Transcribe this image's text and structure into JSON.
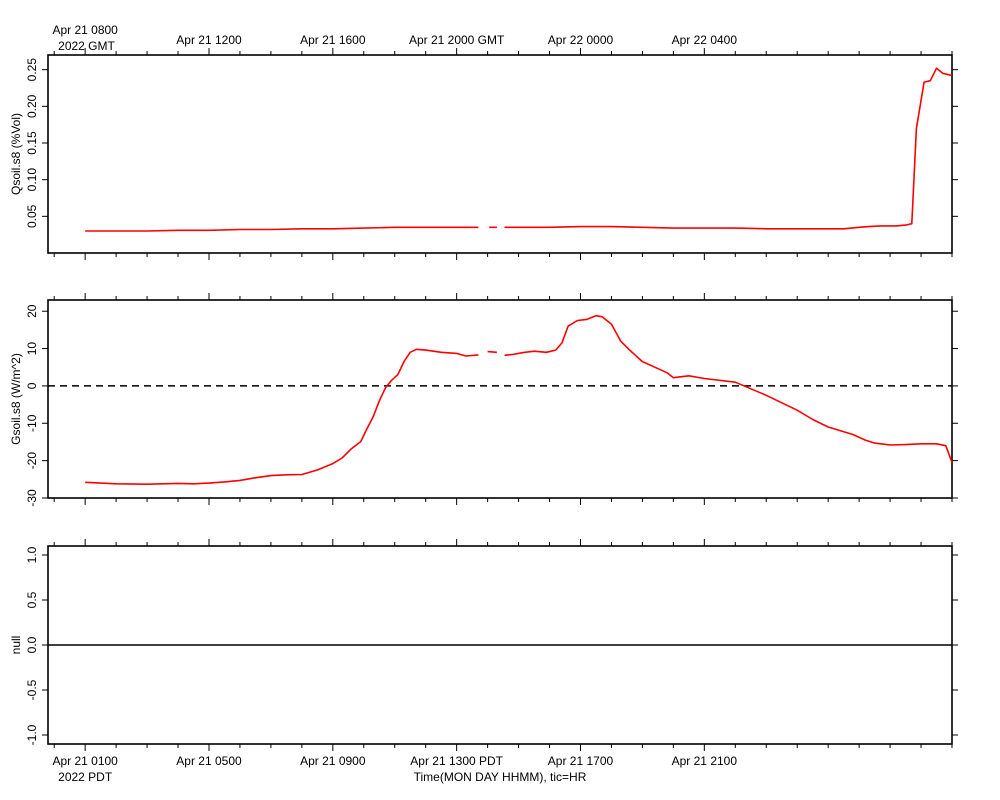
{
  "chart_data": [
    {
      "type": "line",
      "ylabel": "Qsoil.s8 (%Vol)",
      "ylim": [
        0.0,
        0.27
      ],
      "yticks": [
        0.05,
        0.1,
        0.15,
        0.2,
        0.25
      ],
      "ytick_labels": [
        "0.05",
        "0.10",
        "0.15",
        "0.20",
        "0.25"
      ],
      "zero_line": false,
      "series": [
        {
          "color": "#ff0000",
          "segments": [
            {
              "x": [
                0,
                1,
                2,
                3,
                4,
                5,
                6,
                7,
                8,
                9,
                10,
                11,
                12,
                12.7
              ],
              "y": [
                0.03,
                0.03,
                0.03,
                0.031,
                0.031,
                0.032,
                0.032,
                0.033,
                0.033,
                0.034,
                0.035,
                0.035,
                0.035,
                0.035
              ]
            },
            {
              "x": [
                13.05,
                13.3
              ],
              "y": [
                0.035,
                0.035
              ]
            },
            {
              "x": [
                13.55,
                14,
                15,
                16,
                17,
                18,
                19,
                20,
                21,
                22,
                23,
                23.5,
                24.5,
                25,
                25.3,
                25.7,
                26,
                26.2,
                26.5,
                26.7,
                26.85,
                27.1,
                27.3,
                27.5,
                27.7,
                28.0
              ],
              "y": [
                0.035,
                0.035,
                0.035,
                0.036,
                0.036,
                0.035,
                0.034,
                0.034,
                0.034,
                0.033,
                0.033,
                0.033,
                0.033,
                0.035,
                0.036,
                0.037,
                0.037,
                0.037,
                0.038,
                0.04,
                0.17,
                0.233,
                0.235,
                0.252,
                0.245,
                0.242
              ]
            }
          ]
        }
      ]
    },
    {
      "type": "line",
      "ylabel": "Gsoil.s8 (W/m^2)",
      "ylim": [
        -30,
        23
      ],
      "yticks": [
        -30,
        -20,
        -10,
        0,
        10,
        20
      ],
      "ytick_labels": [
        "-30",
        "-20",
        "-10",
        "0",
        "10",
        "20"
      ],
      "zero_line": true,
      "series": [
        {
          "color": "#ff0000",
          "segments": [
            {
              "x": [
                0,
                1,
                2,
                3,
                3.5,
                4,
                4.5,
                5,
                5.5,
                6,
                6.5,
                7,
                7.5,
                8,
                8.3,
                8.6,
                8.9,
                9.1,
                9.3,
                9.5,
                9.7,
                9.9,
                10.1,
                10.3,
                10.5,
                10.7,
                11,
                11.5,
                12,
                12.3,
                12.7
              ],
              "y": [
                -25.8,
                -26.2,
                -26.3,
                -26.1,
                -26.2,
                -26.0,
                -25.7,
                -25.3,
                -24.6,
                -24.0,
                -23.8,
                -23.7,
                -22.5,
                -20.8,
                -19.3,
                -16.8,
                -14.9,
                -11.5,
                -8.3,
                -4.0,
                -0.5,
                1.5,
                3.0,
                6.5,
                9.0,
                9.8,
                9.6,
                9.0,
                8.7,
                8.0,
                8.3
              ]
            },
            {
              "x": [
                13.0,
                13.3
              ],
              "y": [
                9.2,
                9.0
              ]
            },
            {
              "x": [
                13.55,
                13.8,
                14.2,
                14.5,
                14.9,
                15.2,
                15.4,
                15.6,
                15.9,
                16.2,
                16.5,
                16.7,
                17.0,
                17.3,
                17.6,
                18.0,
                18.4,
                18.8,
                19.0,
                19.5,
                20.0,
                21.0,
                22.0,
                23.0,
                23.5,
                24.0,
                24.8,
                25.2,
                25.5,
                26.0,
                26.5,
                27.0,
                27.5,
                27.8,
                28.0
              ],
              "y": [
                8.2,
                8.4,
                9.0,
                9.3,
                9.0,
                9.6,
                11.5,
                16.0,
                17.5,
                17.8,
                18.8,
                18.5,
                16.5,
                12.0,
                9.5,
                6.5,
                5.0,
                3.5,
                2.2,
                2.7,
                2.0,
                1.0,
                -2.5,
                -6.5,
                -9.0,
                -11.0,
                -13.0,
                -14.5,
                -15.3,
                -15.8,
                -15.7,
                -15.5,
                -15.5,
                -16.0,
                -20.5
              ]
            }
          ]
        }
      ]
    },
    {
      "type": "line",
      "ylabel": "null",
      "ylim": [
        -1.1,
        1.1
      ],
      "yticks": [
        -1.0,
        -0.5,
        0.0,
        0.5,
        1.0
      ],
      "ytick_labels": [
        "-1.0",
        "-0.5",
        "0.0",
        "0.5",
        "1.0"
      ],
      "zero_line": false,
      "series": [
        {
          "color": "#000000",
          "segments": [
            {
              "x": [
                -1.2,
                28.0
              ],
              "y": [
                0.0,
                0.0
              ]
            }
          ]
        }
      ]
    }
  ],
  "time_axis": {
    "xlim": [
      -1.2,
      28.0
    ],
    "top_ticks": [
      {
        "x": 0,
        "line1": "Apr 21 0800",
        "line2": "2022 GMT"
      },
      {
        "x": 4,
        "line1": "Apr 21 1200",
        "line2": ""
      },
      {
        "x": 8,
        "line1": "Apr 21 1600",
        "line2": ""
      },
      {
        "x": 12,
        "line1": "Apr 21 2000 GMT",
        "line2": ""
      },
      {
        "x": 16,
        "line1": "Apr 22 0000",
        "line2": ""
      },
      {
        "x": 20,
        "line1": "Apr 22 0400",
        "line2": ""
      }
    ],
    "bottom_ticks": [
      {
        "x": 0,
        "line1": "Apr 21 0100",
        "line2": "2022 PDT"
      },
      {
        "x": 4,
        "line1": "Apr 21 0500",
        "line2": ""
      },
      {
        "x": 8,
        "line1": "Apr 21 0900",
        "line2": ""
      },
      {
        "x": 12,
        "line1": "Apr 21 1300 PDT",
        "line2": ""
      },
      {
        "x": 16,
        "line1": "Apr 21 1700",
        "line2": ""
      },
      {
        "x": 20,
        "line1": "Apr 21 2100",
        "line2": ""
      }
    ],
    "xlabel": "Time(MON DAY HHMM), tic=HR"
  }
}
